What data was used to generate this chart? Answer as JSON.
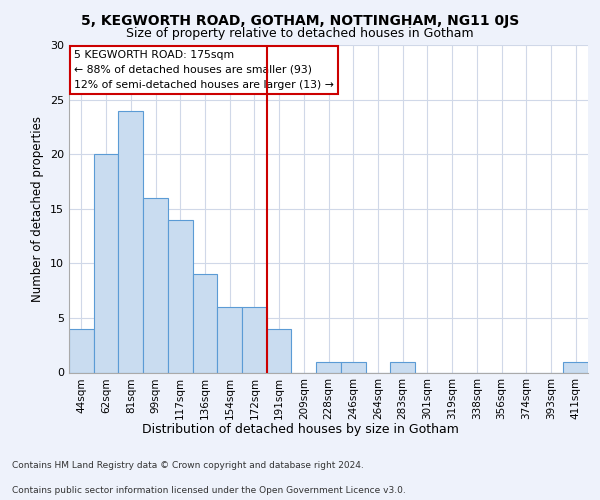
{
  "title1": "5, KEGWORTH ROAD, GOTHAM, NOTTINGHAM, NG11 0JS",
  "title2": "Size of property relative to detached houses in Gotham",
  "xlabel": "Distribution of detached houses by size in Gotham",
  "ylabel": "Number of detached properties",
  "categories": [
    "44sqm",
    "62sqm",
    "81sqm",
    "99sqm",
    "117sqm",
    "136sqm",
    "154sqm",
    "172sqm",
    "191sqm",
    "209sqm",
    "228sqm",
    "246sqm",
    "264sqm",
    "283sqm",
    "301sqm",
    "319sqm",
    "338sqm",
    "356sqm",
    "374sqm",
    "393sqm",
    "411sqm"
  ],
  "values": [
    4,
    20,
    24,
    16,
    14,
    9,
    6,
    6,
    4,
    0,
    1,
    1,
    0,
    1,
    0,
    0,
    0,
    0,
    0,
    0,
    1
  ],
  "bar_color": "#c9dcf0",
  "bar_edge_color": "#5b9bd5",
  "vline_x": 7.5,
  "vline_color": "#cc0000",
  "annotation_text": "5 KEGWORTH ROAD: 175sqm\n← 88% of detached houses are smaller (93)\n12% of semi-detached houses are larger (13) →",
  "annotation_box_color": "#cc0000",
  "ylim": [
    0,
    30
  ],
  "yticks": [
    0,
    5,
    10,
    15,
    20,
    25,
    30
  ],
  "footer1": "Contains HM Land Registry data © Crown copyright and database right 2024.",
  "footer2": "Contains public sector information licensed under the Open Government Licence v3.0.",
  "bg_color": "#eef2fb",
  "plot_bg_color": "#ffffff",
  "grid_color": "#d0d8e8"
}
